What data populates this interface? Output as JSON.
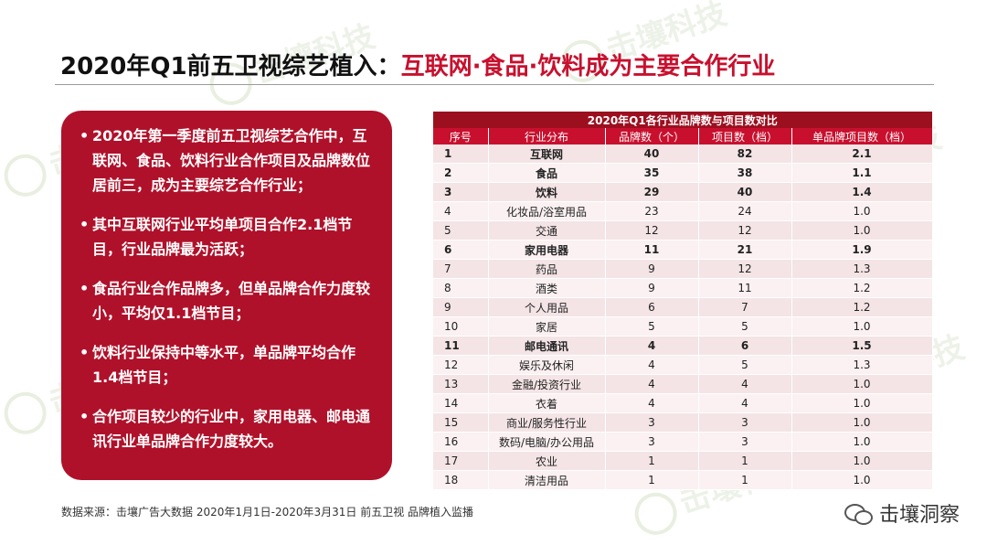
{
  "watermark_text": "击壤科技",
  "title": {
    "prefix": "2020年Q1前五卫视综艺植入：",
    "highlight": "互联网·食品·饮料成为主要合作行业"
  },
  "panel": {
    "bullets": [
      "2020年第一季度前五卫视综艺合作中，互联网、食品、饮料行业合作项目及品牌数位居前三，成为主要综艺合作行业；",
      "其中互联网行业平均单项目合作2.1档节目，行业品牌最为活跃；",
      "食品行业合作品牌多，但单品牌合作力度较小，平均仅1.1档节目；",
      "饮料行业保持中等水平，单品牌平均合作1.4档节目；",
      "合作项目较少的行业中，家用电器、邮电通讯行业单品牌合作力度较大。"
    ]
  },
  "table": {
    "caption": "2020年Q1各行业品牌数与项目数对比",
    "headers": [
      "序号",
      "行业分布",
      "品牌数（个）",
      "项目数（档）",
      "单品牌项目数（档）"
    ],
    "rows": [
      {
        "no": "1",
        "industry": "互联网",
        "brands": "40",
        "projects": "82",
        "per_brand": "2.1",
        "bold": true
      },
      {
        "no": "2",
        "industry": "食品",
        "brands": "35",
        "projects": "38",
        "per_brand": "1.1",
        "bold": true
      },
      {
        "no": "3",
        "industry": "饮料",
        "brands": "29",
        "projects": "40",
        "per_brand": "1.4",
        "bold": true
      },
      {
        "no": "4",
        "industry": "化妆品/浴室用品",
        "brands": "23",
        "projects": "24",
        "per_brand": "1.0",
        "bold": false
      },
      {
        "no": "5",
        "industry": "交通",
        "brands": "12",
        "projects": "12",
        "per_brand": "1.0",
        "bold": false
      },
      {
        "no": "6",
        "industry": "家用电器",
        "brands": "11",
        "projects": "21",
        "per_brand": "1.9",
        "bold": true
      },
      {
        "no": "7",
        "industry": "药品",
        "brands": "9",
        "projects": "12",
        "per_brand": "1.3",
        "bold": false
      },
      {
        "no": "8",
        "industry": "酒类",
        "brands": "9",
        "projects": "11",
        "per_brand": "1.2",
        "bold": false
      },
      {
        "no": "9",
        "industry": "个人用品",
        "brands": "6",
        "projects": "7",
        "per_brand": "1.2",
        "bold": false
      },
      {
        "no": "10",
        "industry": "家居",
        "brands": "5",
        "projects": "5",
        "per_brand": "1.0",
        "bold": false
      },
      {
        "no": "11",
        "industry": "邮电通讯",
        "brands": "4",
        "projects": "6",
        "per_brand": "1.5",
        "bold": true
      },
      {
        "no": "12",
        "industry": "娱乐及休闲",
        "brands": "4",
        "projects": "5",
        "per_brand": "1.3",
        "bold": false
      },
      {
        "no": "13",
        "industry": "金融/投资行业",
        "brands": "4",
        "projects": "4",
        "per_brand": "1.0",
        "bold": false
      },
      {
        "no": "14",
        "industry": "衣着",
        "brands": "4",
        "projects": "4",
        "per_brand": "1.0",
        "bold": false
      },
      {
        "no": "15",
        "industry": "商业/服务性行业",
        "brands": "3",
        "projects": "3",
        "per_brand": "1.0",
        "bold": false
      },
      {
        "no": "16",
        "industry": "数码/电脑/办公用品",
        "brands": "3",
        "projects": "3",
        "per_brand": "1.0",
        "bold": false
      },
      {
        "no": "17",
        "industry": "农业",
        "brands": "1",
        "projects": "1",
        "per_brand": "1.0",
        "bold": false
      },
      {
        "no": "18",
        "industry": "清洁用品",
        "brands": "1",
        "projects": "1",
        "per_brand": "1.0",
        "bold": false
      }
    ]
  },
  "source": "数据来源：击壤广告大数据  2020年1月1日-2020年3月31日  前五卫视 品牌植入监播",
  "brand_label": "击壤洞察",
  "icons": {
    "brand": "wechat-icon"
  },
  "colors": {
    "accent": "#c8102e",
    "panel": "#b0112a"
  }
}
